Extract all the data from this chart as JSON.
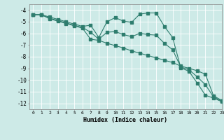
{
  "xlabel": "Humidex (Indice chaleur)",
  "bg_color": "#cdeae7",
  "grid_color": "#ffffff",
  "line_color": "#2e7d6e",
  "xlim": [
    -0.5,
    23.0
  ],
  "ylim": [
    -12.5,
    -3.5
  ],
  "xticks": [
    0,
    1,
    2,
    3,
    4,
    5,
    6,
    7,
    8,
    9,
    10,
    11,
    12,
    13,
    14,
    15,
    16,
    17,
    18,
    19,
    20,
    21,
    22,
    23
  ],
  "yticks": [
    -4,
    -5,
    -6,
    -7,
    -8,
    -9,
    -10,
    -11,
    -12
  ],
  "line1_x": [
    0,
    1,
    2,
    3,
    4,
    5,
    6,
    7,
    8,
    9,
    10,
    11,
    12,
    13,
    14,
    15,
    16,
    17,
    18,
    19,
    20,
    21,
    22,
    23
  ],
  "line1_y": [
    -4.4,
    -4.4,
    -4.6,
    -4.8,
    -5.0,
    -5.2,
    -5.4,
    -5.3,
    -6.35,
    -5.0,
    -4.65,
    -4.95,
    -5.05,
    -4.35,
    -4.25,
    -4.25,
    -5.4,
    -6.35,
    -8.95,
    -9.25,
    -10.25,
    -11.3,
    -11.55,
    -11.85
  ],
  "line2_x": [
    0,
    1,
    2,
    3,
    4,
    5,
    6,
    7,
    8,
    9,
    10,
    11,
    12,
    13,
    14,
    15,
    16,
    17,
    18,
    19,
    20,
    21,
    22,
    23
  ],
  "line2_y": [
    -4.4,
    -4.4,
    -4.75,
    -4.95,
    -5.15,
    -5.35,
    -5.55,
    -6.5,
    -6.6,
    -6.85,
    -7.05,
    -7.25,
    -7.5,
    -7.7,
    -7.9,
    -8.1,
    -8.3,
    -8.5,
    -8.8,
    -9.0,
    -9.2,
    -9.5,
    -11.35,
    -11.75
  ],
  "line3_x": [
    0,
    1,
    2,
    3,
    4,
    5,
    6,
    7,
    8,
    9,
    10,
    11,
    12,
    13,
    14,
    15,
    16,
    17,
    18,
    19,
    20,
    21,
    22,
    23
  ],
  "line3_y": [
    -4.4,
    -4.4,
    -4.7,
    -4.9,
    -5.1,
    -5.3,
    -5.5,
    -5.9,
    -6.5,
    -5.9,
    -5.85,
    -6.1,
    -6.28,
    -6.0,
    -6.1,
    -6.15,
    -6.85,
    -7.4,
    -8.88,
    -9.12,
    -9.72,
    -10.4,
    -11.45,
    -11.8
  ]
}
